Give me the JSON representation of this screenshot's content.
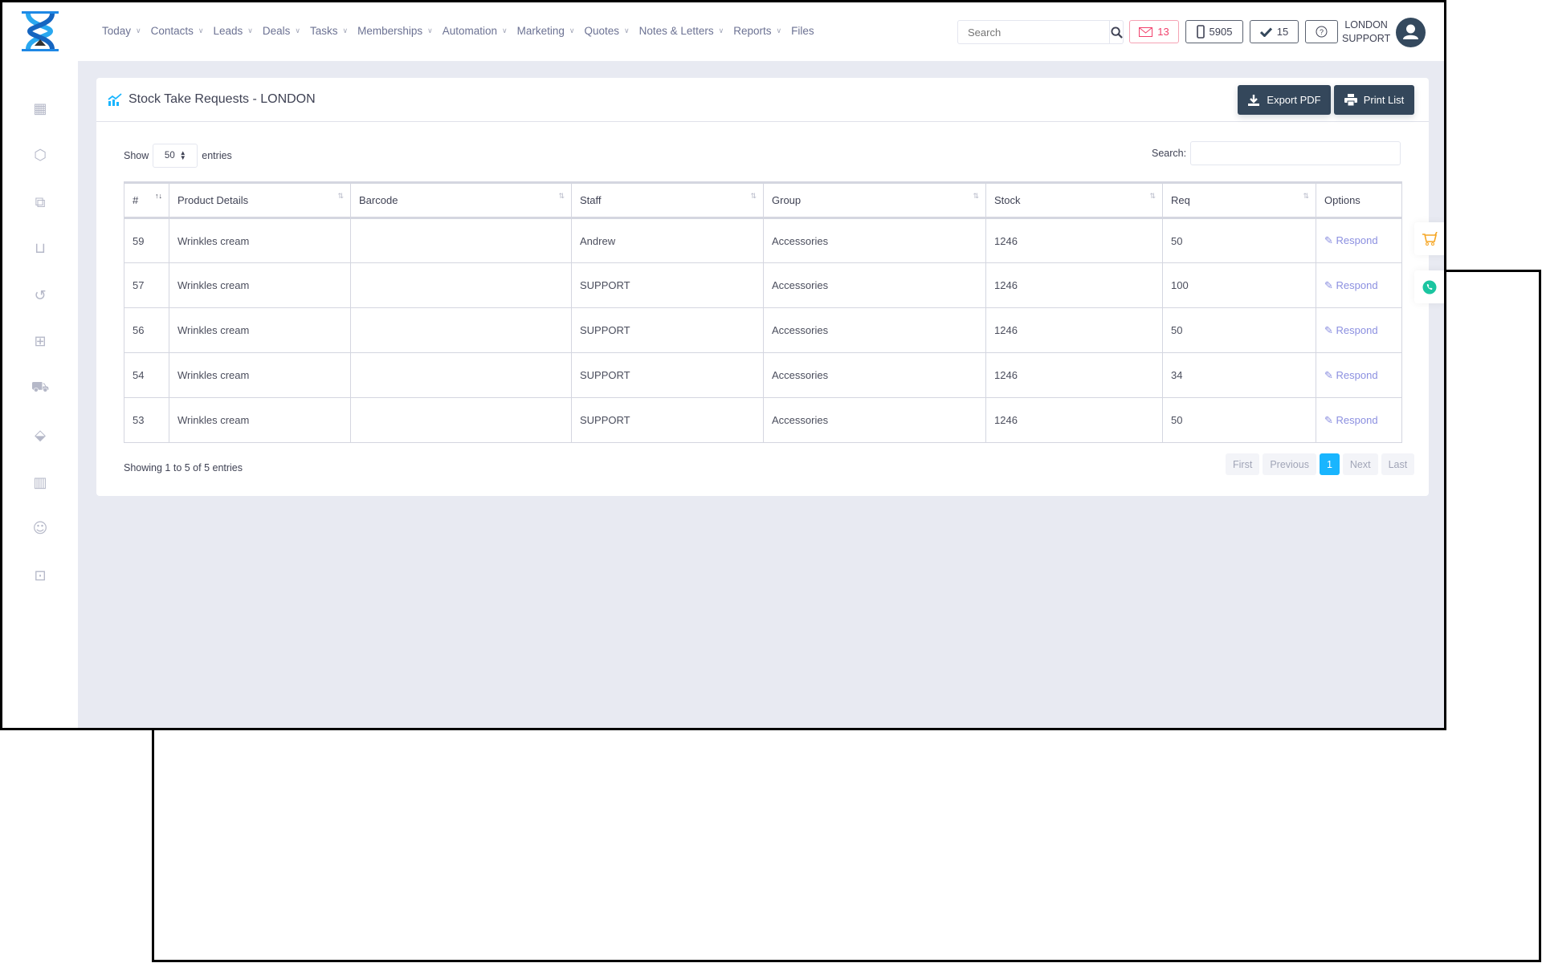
{
  "header": {
    "nav": [
      {
        "label": "Today",
        "dropdown": true
      },
      {
        "label": "Contacts",
        "dropdown": true
      },
      {
        "label": "Leads",
        "dropdown": true
      },
      {
        "label": "Deals",
        "dropdown": true
      },
      {
        "label": "Tasks",
        "dropdown": true
      },
      {
        "label": "Memberships",
        "dropdown": true
      },
      {
        "label": "Automation",
        "dropdown": true
      },
      {
        "label": "Marketing",
        "dropdown": true
      },
      {
        "label": "Quotes",
        "dropdown": true
      },
      {
        "label": "Notes & Letters",
        "dropdown": true
      },
      {
        "label": "Reports",
        "dropdown": true
      },
      {
        "label": "Files",
        "dropdown": false
      }
    ],
    "search_placeholder": "Search",
    "mail_count": "13",
    "phone_count": "5905",
    "tasks_count": "15",
    "user_line1": "LONDON",
    "user_line2": "SUPPORT",
    "colors": {
      "mail": "#f1416c",
      "dark": "#34475b",
      "accent": "#19b5fe"
    }
  },
  "sidebar": {
    "icons": [
      "calendar-icon",
      "box-icon",
      "copy-icon",
      "shopping-bag-icon",
      "history-icon",
      "gift-icon",
      "cart-icon",
      "tags-icon",
      "report-icon",
      "user-sync-icon",
      "lock-icon"
    ]
  },
  "card": {
    "title": "Stock Take Requests - LONDON",
    "export_label": "Export PDF",
    "print_label": "Print List",
    "show_label": "Show",
    "entries_label": "entries",
    "page_length": "50",
    "search_label": "Search:",
    "columns": [
      "#",
      "Product Details",
      "Barcode",
      "Staff",
      "Group",
      "Stock",
      "Req",
      "Options"
    ],
    "rows": [
      {
        "id": "59",
        "product": "Wrinkles cream",
        "barcode": "",
        "staff": "Andrew",
        "group": "Accessories",
        "stock": "1246",
        "req": "50",
        "option": "Respond"
      },
      {
        "id": "57",
        "product": "Wrinkles cream",
        "barcode": "",
        "staff": "SUPPORT",
        "group": "Accessories",
        "stock": "1246",
        "req": "100",
        "option": "Respond"
      },
      {
        "id": "56",
        "product": "Wrinkles cream",
        "barcode": "",
        "staff": "SUPPORT",
        "group": "Accessories",
        "stock": "1246",
        "req": "50",
        "option": "Respond"
      },
      {
        "id": "54",
        "product": "Wrinkles cream",
        "barcode": "",
        "staff": "SUPPORT",
        "group": "Accessories",
        "stock": "1246",
        "req": "34",
        "option": "Respond"
      },
      {
        "id": "53",
        "product": "Wrinkles cream",
        "barcode": "",
        "staff": "SUPPORT",
        "group": "Accessories",
        "stock": "1246",
        "req": "50",
        "option": "Respond"
      }
    ],
    "info": "Showing 1 to 5 of 5 entries",
    "pager": {
      "first": "First",
      "previous": "Previous",
      "current": "1",
      "next": "Next",
      "last": "Last"
    }
  }
}
